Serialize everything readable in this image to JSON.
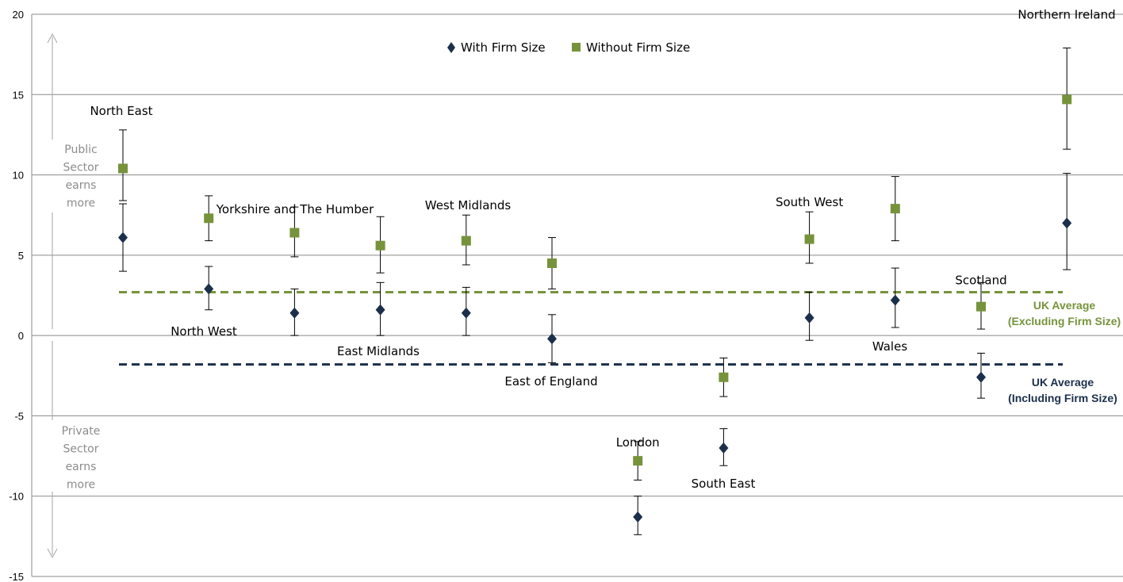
{
  "chart_data": {
    "type": "scatter",
    "ylim": [
      -15,
      20
    ],
    "yticks": [
      "20",
      "15",
      "10",
      "5",
      "0",
      "-5",
      "-10",
      "-15"
    ],
    "grid": true,
    "legend_position": "top-center",
    "series": [
      {
        "name": "With Firm Size",
        "color": "#1c2f4a",
        "marker": "diamond",
        "values": [
          6.1,
          2.9,
          1.4,
          1.6,
          1.4,
          -0.2,
          -11.3,
          -7.0,
          1.1,
          2.2,
          -2.6,
          7.0
        ],
        "error_low": [
          4.0,
          1.6,
          0.0,
          0.0,
          0.0,
          -1.7,
          -12.4,
          -8.1,
          -0.3,
          0.5,
          -3.9,
          4.1
        ],
        "error_high": [
          8.2,
          4.3,
          2.9,
          3.3,
          3.0,
          1.3,
          -10.0,
          -5.8,
          2.7,
          4.2,
          -1.1,
          10.1
        ]
      },
      {
        "name": "Without Firm Size",
        "color": "#76933c",
        "marker": "square",
        "values": [
          10.4,
          7.3,
          6.4,
          5.6,
          5.9,
          4.5,
          -7.8,
          -2.6,
          6.0,
          7.9,
          1.8,
          14.7
        ],
        "error_low": [
          8.4,
          5.9,
          4.9,
          3.9,
          4.4,
          2.9,
          -9.0,
          -3.8,
          4.5,
          5.9,
          0.4,
          11.6
        ],
        "error_high": [
          12.8,
          8.7,
          8.0,
          7.4,
          7.5,
          6.1,
          -6.6,
          -1.4,
          7.7,
          9.9,
          3.3,
          17.9
        ]
      }
    ],
    "regions": [
      {
        "label": "North East",
        "label_side": "above"
      },
      {
        "label": "North West",
        "label_side": "below"
      },
      {
        "label": "Yorkshire and The Humber",
        "label_side": "above"
      },
      {
        "label": "East Midlands",
        "label_side": "below"
      },
      {
        "label": "West Midlands",
        "label_side": "above"
      },
      {
        "label": "East of England",
        "label_side": "below"
      },
      {
        "label": "London",
        "label_side": "above"
      },
      {
        "label": "South East",
        "label_side": "below"
      },
      {
        "label": "South West",
        "label_side": "above"
      },
      {
        "label": "Wales",
        "label_side": "below"
      },
      {
        "label": "Scotland",
        "label_side": "above"
      },
      {
        "label": "Northern Ireland",
        "label_side": "above"
      }
    ],
    "reference_lines": [
      {
        "value": 2.7,
        "color": "#76933c",
        "label_lines": [
          "UK Average",
          "(Excluding Firm Size)"
        ]
      },
      {
        "value": -1.8,
        "color": "#1c2f4a",
        "label_lines": [
          "UK Average",
          "(Including Firm Size)"
        ]
      }
    ],
    "annotations": {
      "public": [
        "Public",
        "Sector",
        "earns",
        "more"
      ],
      "private": [
        "Private",
        "Sector",
        "earns",
        "more"
      ]
    }
  }
}
